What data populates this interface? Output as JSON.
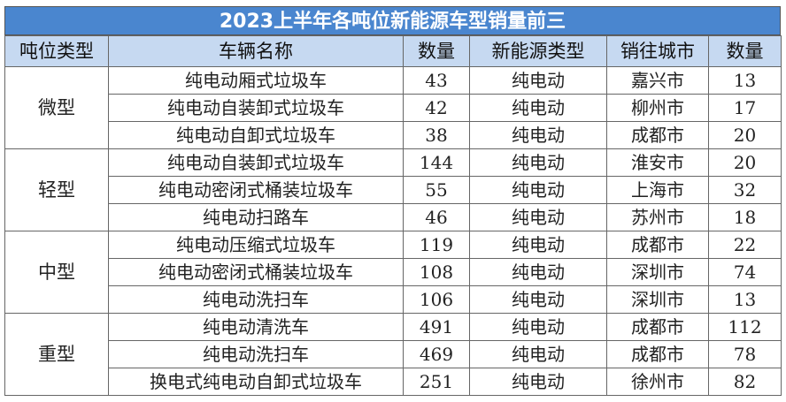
{
  "title": "2023上半年各吨位新能源车型销量前三",
  "headers": [
    "吨位类型",
    "车辆名称",
    "数量",
    "新能源类型",
    "销往城市",
    "数量"
  ],
  "groups": [
    {
      "type": "微型",
      "rows": [
        {
          "name": "纯电动厢式垃圾车",
          "qty": "43",
          "energy": "纯电动",
          "city": "嘉兴市",
          "city_qty": "13"
        },
        {
          "name": "纯电动自装卸式垃圾车",
          "qty": "42",
          "energy": "纯电动",
          "city": "柳州市",
          "city_qty": "17"
        },
        {
          "name": "纯电动自卸式垃圾车",
          "qty": "38",
          "energy": "纯电动",
          "city": "成都市",
          "city_qty": "20"
        }
      ]
    },
    {
      "type": "轻型",
      "rows": [
        {
          "name": "纯电动自装卸式垃圾车",
          "qty": "144",
          "energy": "纯电动",
          "city": "淮安市",
          "city_qty": "20"
        },
        {
          "name": "纯电动密闭式桶装垃圾车",
          "qty": "55",
          "energy": "纯电动",
          "city": "上海市",
          "city_qty": "32"
        },
        {
          "name": "纯电动扫路车",
          "qty": "46",
          "energy": "纯电动",
          "city": "苏州市",
          "city_qty": "18"
        }
      ]
    },
    {
      "type": "中型",
      "rows": [
        {
          "name": "纯电动压缩式垃圾车",
          "qty": "119",
          "energy": "纯电动",
          "city": "成都市",
          "city_qty": "22"
        },
        {
          "name": "纯电动密闭式桶装垃圾车",
          "qty": "108",
          "energy": "纯电动",
          "city": "深圳市",
          "city_qty": "74"
        },
        {
          "name": "纯电动洗扫车",
          "qty": "106",
          "energy": "纯电动",
          "city": "深圳市",
          "city_qty": "13"
        }
      ]
    },
    {
      "type": "重型",
      "rows": [
        {
          "name": "纯电动清洗车",
          "qty": "491",
          "energy": "纯电动",
          "city": "成都市",
          "city_qty": "112"
        },
        {
          "name": "纯电动洗扫车",
          "qty": "469",
          "energy": "纯电动",
          "city": "成都市",
          "city_qty": "78"
        },
        {
          "name": "换电式纯电动自卸式垃圾车",
          "qty": "251",
          "energy": "纯电动",
          "city": "徐州市",
          "city_qty": "82"
        }
      ]
    }
  ],
  "colors": {
    "title_bg": "#4a86cf",
    "header_bg": "#c6d9f1"
  }
}
